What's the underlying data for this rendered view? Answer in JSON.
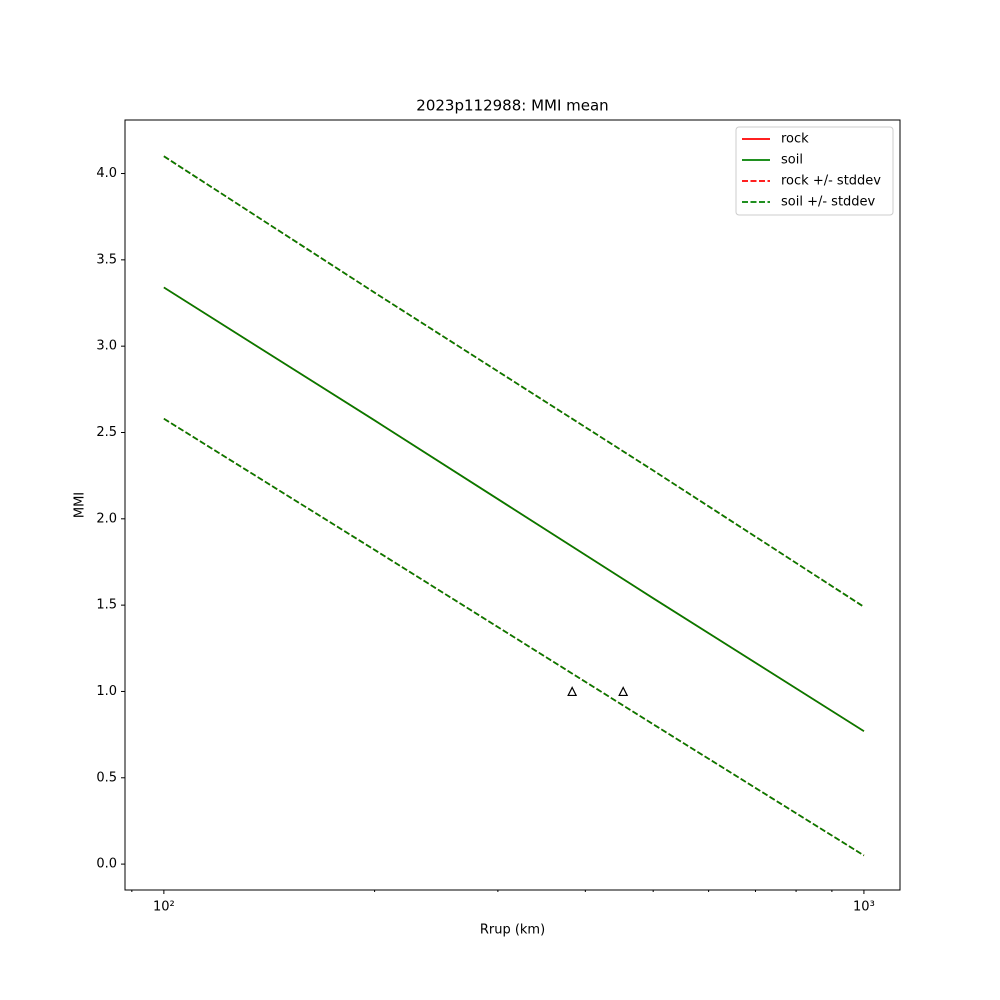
{
  "chart_data": {
    "type": "line",
    "title": "2023p112988: MMI mean",
    "xlabel": "Rrup (km)",
    "ylabel": "MMI",
    "xscale": "log",
    "x": [
      100,
      200,
      500,
      1000
    ],
    "series": [
      {
        "name": "rock",
        "color": "#ff0000",
        "dashed": false,
        "values": [
          3.34,
          2.57,
          1.54,
          0.77
        ]
      },
      {
        "name": "soil",
        "color": "#008000",
        "dashed": false,
        "values": [
          3.34,
          2.57,
          1.54,
          0.77
        ]
      },
      {
        "name": "rock +/- stddev",
        "color": "#ff0000",
        "dashed": true,
        "upper": [
          4.1,
          3.31,
          2.28,
          1.49
        ],
        "lower": [
          2.58,
          1.82,
          0.81,
          0.05
        ]
      },
      {
        "name": "soil +/- stddev",
        "color": "#008000",
        "dashed": true,
        "upper": [
          4.1,
          3.31,
          2.28,
          1.49
        ],
        "lower": [
          2.58,
          1.82,
          0.81,
          0.05
        ]
      }
    ],
    "stations": {
      "x": [
        383,
        453
      ],
      "values": [
        1.0,
        1.0
      ],
      "marker": "triangle"
    },
    "xlim": [
      88,
      1126
    ],
    "ylim": [
      -0.15,
      4.31
    ],
    "xticks": [
      {
        "value": 100,
        "label": "10²"
      },
      {
        "value": 1000,
        "label": "10³"
      }
    ],
    "xminorticks": [
      90,
      200,
      300,
      400,
      500,
      600,
      700,
      800,
      900
    ],
    "yticks": [
      {
        "value": 0,
        "label": "0.0"
      },
      {
        "value": 0.5,
        "label": "0.5"
      },
      {
        "value": 1,
        "label": "1.0"
      },
      {
        "value": 1.5,
        "label": "1.5"
      },
      {
        "value": 2,
        "label": "2.0"
      },
      {
        "value": 2.5,
        "label": "2.5"
      },
      {
        "value": 3,
        "label": "3.0"
      },
      {
        "value": 3.5,
        "label": "3.5"
      },
      {
        "value": 4,
        "label": "4.0"
      }
    ],
    "legend": "upper right"
  }
}
